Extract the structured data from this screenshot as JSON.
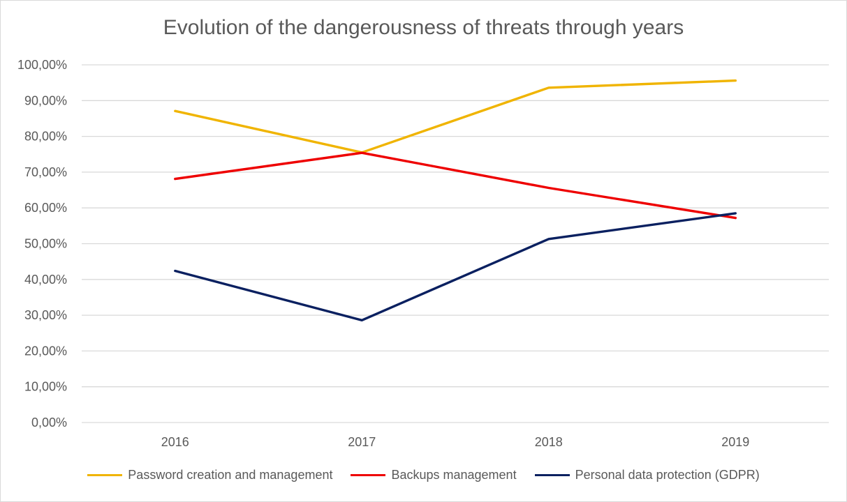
{
  "chart_data": {
    "type": "line",
    "title": "Evolution of the dangerousness of threats through years",
    "xlabel": "",
    "ylabel": "",
    "categories": [
      "2016",
      "2017",
      "2018",
      "2019"
    ],
    "ylim": [
      0,
      100
    ],
    "y_ticks": [
      "0,00%",
      "10,00%",
      "20,00%",
      "30,00%",
      "40,00%",
      "50,00%",
      "60,00%",
      "70,00%",
      "80,00%",
      "90,00%",
      "100,00%"
    ],
    "grid": "horizontal",
    "legend": "bottom",
    "series": [
      {
        "name": "Password creation and management",
        "color": "#f0b400",
        "values": [
          87.1,
          75.5,
          93.6,
          95.6
        ]
      },
      {
        "name": "Backups management",
        "color": "#ee0000",
        "values": [
          68.1,
          75.4,
          65.6,
          57.2
        ]
      },
      {
        "name": "Personal data protection (GDPR)",
        "color": "#0a2060",
        "values": [
          42.4,
          28.6,
          51.3,
          58.5
        ]
      }
    ]
  }
}
